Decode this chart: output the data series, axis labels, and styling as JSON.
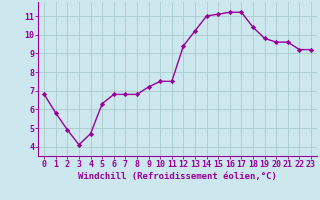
{
  "x": [
    0,
    1,
    2,
    3,
    4,
    5,
    6,
    7,
    8,
    9,
    10,
    11,
    12,
    13,
    14,
    15,
    16,
    17,
    18,
    19,
    20,
    21,
    22,
    23
  ],
  "y": [
    6.8,
    5.8,
    4.9,
    4.1,
    4.7,
    6.3,
    6.8,
    6.8,
    6.8,
    7.2,
    7.5,
    7.5,
    9.4,
    10.2,
    11.0,
    11.1,
    11.2,
    11.2,
    10.4,
    9.8,
    9.6,
    9.6,
    9.2,
    9.2
  ],
  "line_color": "#990099",
  "marker": "D",
  "markersize": 2.2,
  "linewidth": 1.0,
  "bg_color": "#cce8ee",
  "grid_color": "#aacccc",
  "xlabel": "Windchill (Refroidissement éolien,°C)",
  "xlabel_fontsize": 6.5,
  "tick_fontsize": 6.0,
  "xlim": [
    -0.5,
    23.5
  ],
  "ylim": [
    3.5,
    11.75
  ],
  "yticks": [
    4,
    5,
    6,
    7,
    8,
    9,
    10,
    11
  ],
  "xtick_labels": [
    "0",
    "1",
    "2",
    "3",
    "4",
    "5",
    "6",
    "7",
    "8",
    "9",
    "10",
    "11",
    "12",
    "13",
    "14",
    "15",
    "16",
    "17",
    "18",
    "19",
    "20",
    "21",
    "22",
    "23"
  ]
}
